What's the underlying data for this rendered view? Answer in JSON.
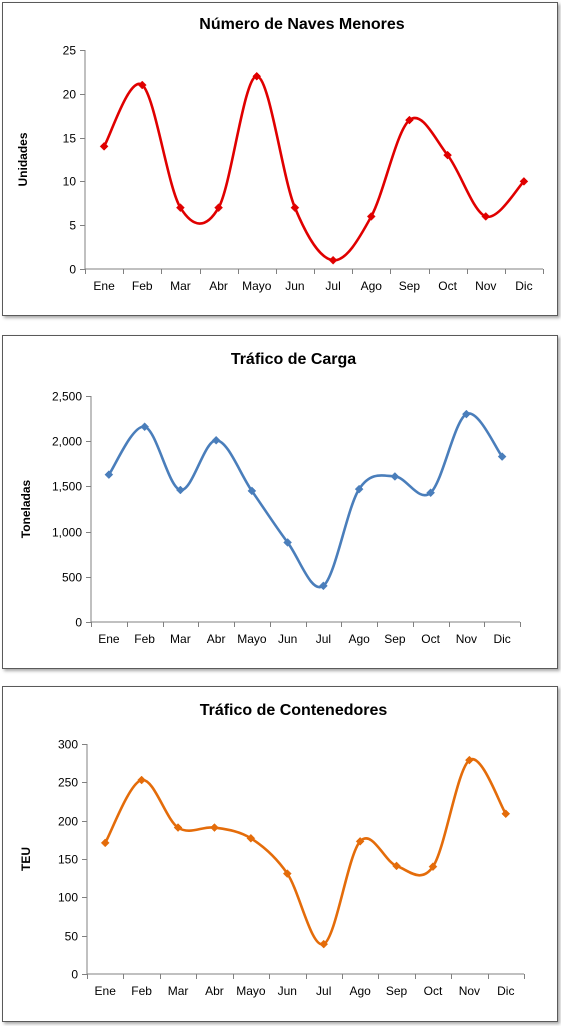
{
  "chart_data": [
    {
      "type": "line",
      "title": "Número de Naves Menores",
      "xlabel": "",
      "ylabel": "Unidades",
      "categories": [
        "Ene",
        "Feb",
        "Mar",
        "Abr",
        "Mayo",
        "Jun",
        "Jul",
        "Ago",
        "Sep",
        "Oct",
        "Nov",
        "Dic"
      ],
      "series": [
        {
          "values": [
            14,
            21,
            7,
            7,
            22,
            7,
            1,
            6,
            17,
            13,
            6,
            10
          ]
        }
      ],
      "ylim": [
        0,
        25
      ],
      "yticks": [
        0,
        5,
        10,
        15,
        20,
        25
      ],
      "ytick_labels": [
        "0",
        "5",
        "10",
        "15",
        "20",
        "25"
      ],
      "color": "#e00000",
      "grid": false,
      "smooth": true
    },
    {
      "type": "line",
      "title": "Tráfico de Carga",
      "xlabel": "",
      "ylabel": "Toneladas",
      "categories": [
        "Ene",
        "Feb",
        "Mar",
        "Abr",
        "Mayo",
        "Jun",
        "Jul",
        "Ago",
        "Sep",
        "Oct",
        "Nov",
        "Dic"
      ],
      "series": [
        {
          "values": [
            1630,
            2160,
            1460,
            2010,
            1450,
            880,
            400,
            1470,
            1610,
            1430,
            2300,
            1830
          ]
        }
      ],
      "ylim": [
        0,
        2500
      ],
      "yticks": [
        0,
        500,
        1000,
        1500,
        2000,
        2500
      ],
      "ytick_labels": [
        "0",
        "500",
        "1,000",
        "1,500",
        "2,000",
        "2,500"
      ],
      "color": "#4a7ebb",
      "grid": false,
      "smooth": true
    },
    {
      "type": "line",
      "title": "Tráfico de Contenedores",
      "xlabel": "",
      "ylabel": "TEU",
      "categories": [
        "Ene",
        "Feb",
        "Mar",
        "Abr",
        "Mayo",
        "Jun",
        "Jul",
        "Ago",
        "Sep",
        "Oct",
        "Nov",
        "Dic"
      ],
      "series": [
        {
          "values": [
            171,
            253,
            191,
            191,
            177,
            131,
            39,
            173,
            141,
            140,
            279,
            209
          ]
        }
      ],
      "ylim": [
        0,
        300
      ],
      "yticks": [
        0,
        50,
        100,
        150,
        200,
        250,
        300
      ],
      "ytick_labels": [
        "0",
        "50",
        "100",
        "150",
        "200",
        "250",
        "300"
      ],
      "color": "#e46c0a",
      "grid": false,
      "smooth": true
    }
  ]
}
